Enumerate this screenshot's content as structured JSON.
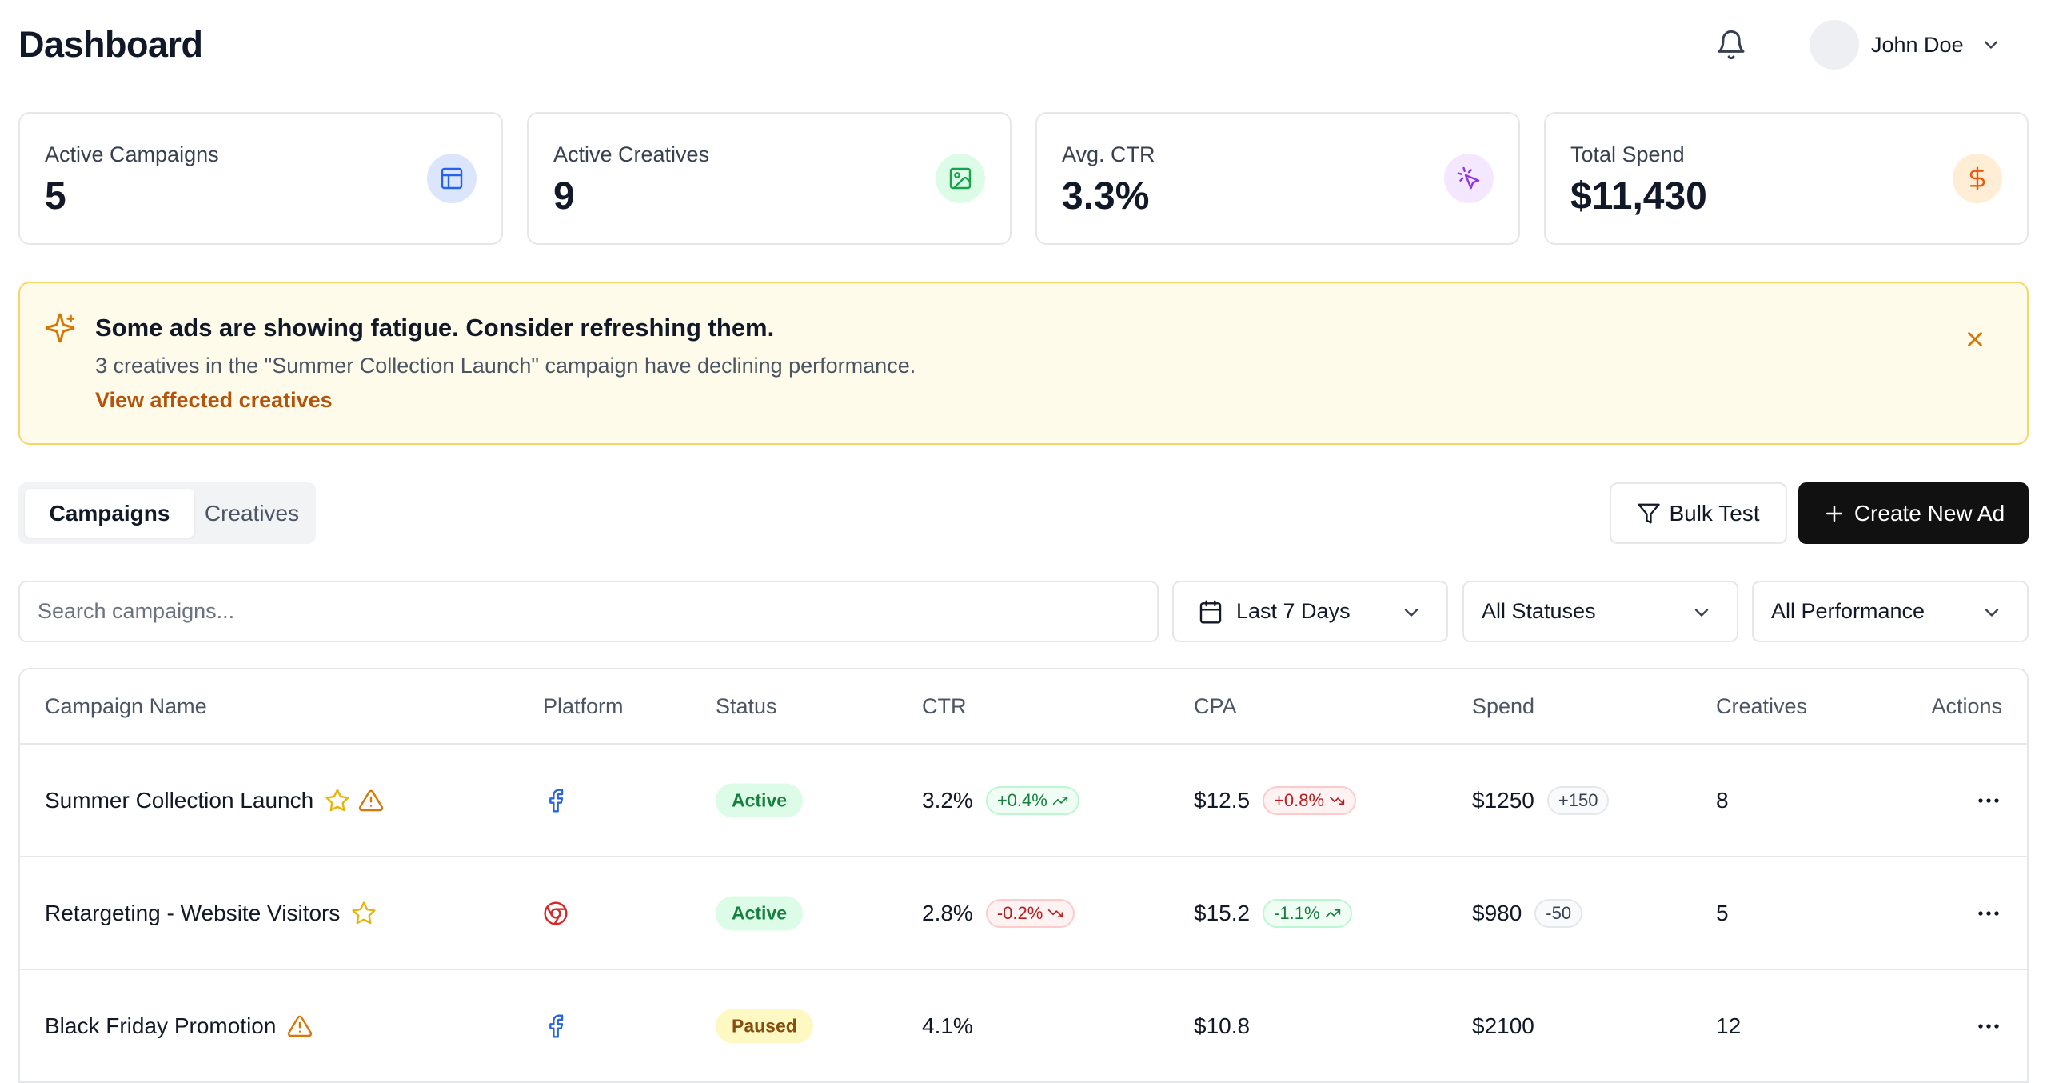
{
  "header": {
    "title": "Dashboard",
    "user_name": "John Doe",
    "icons": {
      "notifications": "bell-icon",
      "user_menu": "chevron-down-icon"
    }
  },
  "stats": [
    {
      "label": "Active Campaigns",
      "value": "5",
      "icon": "layout-icon",
      "icon_bg": "#dbe6fd",
      "icon_color": "#2563eb"
    },
    {
      "label": "Active Creatives",
      "value": "9",
      "icon": "image-icon",
      "icon_bg": "#dcfce7",
      "icon_color": "#16a34a"
    },
    {
      "label": "Avg. CTR",
      "value": "3.3%",
      "icon": "cursor-click-icon",
      "icon_bg": "#f3e8ff",
      "icon_color": "#9333ea"
    },
    {
      "label": "Total Spend",
      "value": "$11,430",
      "icon": "dollar-icon",
      "icon_bg": "#ffedd5",
      "icon_color": "#ea580c"
    }
  ],
  "alert": {
    "title": "Some ads are showing fatigue. Consider refreshing them.",
    "description": "3 creatives in the \"Summer Collection Launch\" campaign have declining performance.",
    "link": "View affected creatives",
    "icon": "sparkles-icon",
    "bg": "#fefbea",
    "accent": "#b45309"
  },
  "tabs": [
    {
      "label": "Campaigns",
      "active": true
    },
    {
      "label": "Creatives",
      "active": false
    }
  ],
  "toolbar": {
    "bulk_test_label": "Bulk Test",
    "create_label": "Create New Ad"
  },
  "filters": {
    "search_placeholder": "Search campaigns...",
    "search_value": "",
    "date_range": "Last 7 Days",
    "status": "All Statuses",
    "performance": "All Performance"
  },
  "table": {
    "columns": [
      "Campaign Name",
      "Platform",
      "Status",
      "CTR",
      "CPA",
      "Spend",
      "Creatives",
      "Actions"
    ],
    "rows": [
      {
        "name": "Summer Collection Launch",
        "starred": true,
        "warning": true,
        "platform": "facebook-icon",
        "status": "Active",
        "ctr": "3.2%",
        "ctr_delta": "+0.4%",
        "ctr_trend": "up",
        "cpa": "$12.5",
        "cpa_delta": "+0.8%",
        "cpa_trend": "down",
        "spend": "$1250",
        "spend_delta": "+150",
        "creatives": "8"
      },
      {
        "name": "Retargeting - Website Visitors",
        "starred": true,
        "warning": false,
        "platform": "chrome-icon",
        "status": "Active",
        "ctr": "2.8%",
        "ctr_delta": "-0.2%",
        "ctr_trend": "down",
        "cpa": "$15.2",
        "cpa_delta": "-1.1%",
        "cpa_trend": "up",
        "spend": "$980",
        "spend_delta": "-50",
        "creatives": "5"
      },
      {
        "name": "Black Friday Promotion",
        "starred": false,
        "warning": true,
        "platform": "facebook-icon",
        "status": "Paused",
        "ctr": "4.1%",
        "ctr_delta": "",
        "ctr_trend": "",
        "cpa": "$10.8",
        "cpa_delta": "",
        "cpa_trend": "",
        "spend": "$2100",
        "spend_delta": "",
        "creatives": "12"
      }
    ]
  }
}
